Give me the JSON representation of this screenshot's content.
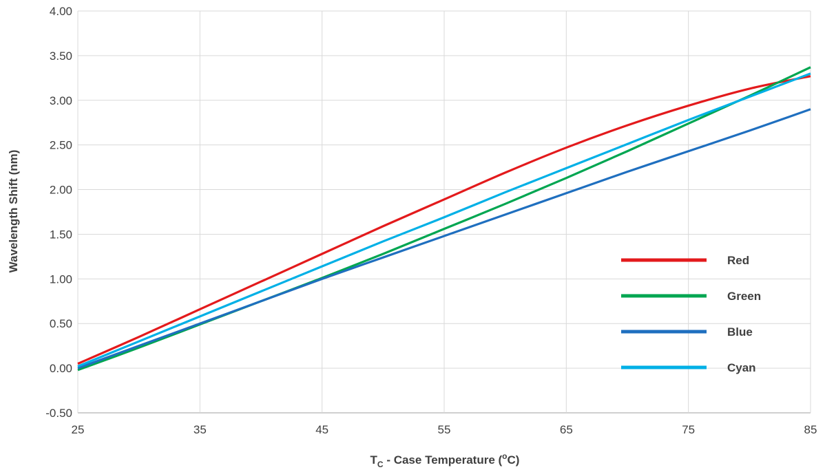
{
  "chart_data": {
    "type": "line",
    "xlabel": {
      "main": "T",
      "subscript": "C",
      "rest": " - Case Temperature (",
      "superscript": "o",
      "end": "C)"
    },
    "ylabel": "Wavelength Shift (nm)",
    "xlim": [
      25,
      85
    ],
    "ylim": [
      -0.5,
      4.0
    ],
    "xticks": [
      "25",
      "35",
      "45",
      "55",
      "65",
      "75",
      "85"
    ],
    "yticks": [
      "4.00",
      "3.50",
      "3.00",
      "2.50",
      "2.00",
      "1.50",
      "1.00",
      "0.50",
      "0.00",
      "-0.50"
    ],
    "grid": true,
    "legend_position": "right",
    "series": [
      {
        "name": "Red",
        "color": "#e31a1c",
        "x": [
          25,
          30,
          35,
          40,
          45,
          50,
          55,
          60,
          65,
          70,
          75,
          80,
          85
        ],
        "y": [
          0.05,
          0.35,
          0.66,
          0.97,
          1.28,
          1.59,
          1.89,
          2.19,
          2.47,
          2.72,
          2.94,
          3.13,
          3.27
        ]
      },
      {
        "name": "Green",
        "color": "#00a651",
        "x": [
          25,
          30,
          35,
          40,
          45,
          50,
          55,
          60,
          65,
          70,
          75,
          80,
          85
        ],
        "y": [
          -0.02,
          0.23,
          0.49,
          0.75,
          1.01,
          1.28,
          1.56,
          1.84,
          2.13,
          2.43,
          2.74,
          3.05,
          3.37
        ]
      },
      {
        "name": "Blue",
        "color": "#1f6fbf",
        "x": [
          25,
          30,
          35,
          40,
          45,
          50,
          55,
          60,
          65,
          70,
          75,
          80,
          85
        ],
        "y": [
          0.0,
          0.25,
          0.5,
          0.75,
          1.0,
          1.24,
          1.48,
          1.72,
          1.96,
          2.2,
          2.43,
          2.66,
          2.9
        ]
      },
      {
        "name": "Cyan",
        "color": "#00b0e6",
        "x": [
          25,
          30,
          35,
          40,
          45,
          50,
          55,
          60,
          65,
          70,
          75,
          80,
          85
        ],
        "y": [
          0.02,
          0.3,
          0.58,
          0.86,
          1.14,
          1.42,
          1.69,
          1.97,
          2.24,
          2.51,
          2.78,
          3.04,
          3.3
        ]
      }
    ]
  }
}
